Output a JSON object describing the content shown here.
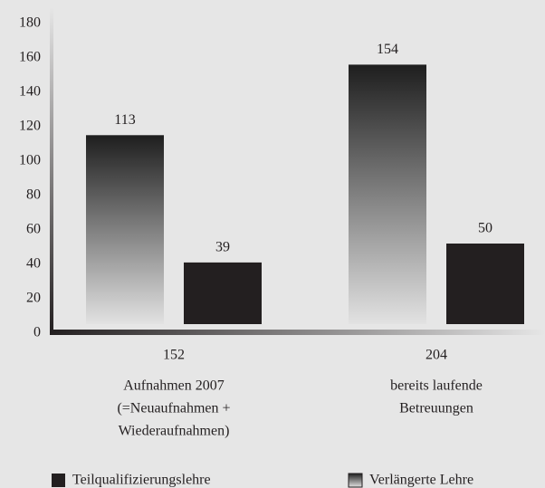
{
  "chart_data": {
    "type": "bar",
    "categories": [
      [
        "Aufnahmen 2007",
        "(=Neuaufnahmen +",
        "Wiederaufnahmen)"
      ],
      [
        "bereits laufende",
        "Betreuungen"
      ]
    ],
    "category_totals": [
      152,
      204
    ],
    "series": [
      {
        "name": "Teilqualifizierungslehre",
        "color": "#231f20",
        "values": [
          39,
          50
        ]
      },
      {
        "name": "Verlängerte Lehre",
        "gradient": [
          "#1e1e1e",
          "#e2e2e2"
        ],
        "values": [
          113,
          154
        ]
      }
    ],
    "ylim": [
      0,
      180
    ],
    "yticks": [
      0,
      20,
      40,
      60,
      80,
      100,
      120,
      140,
      160,
      180
    ],
    "grid": false
  }
}
